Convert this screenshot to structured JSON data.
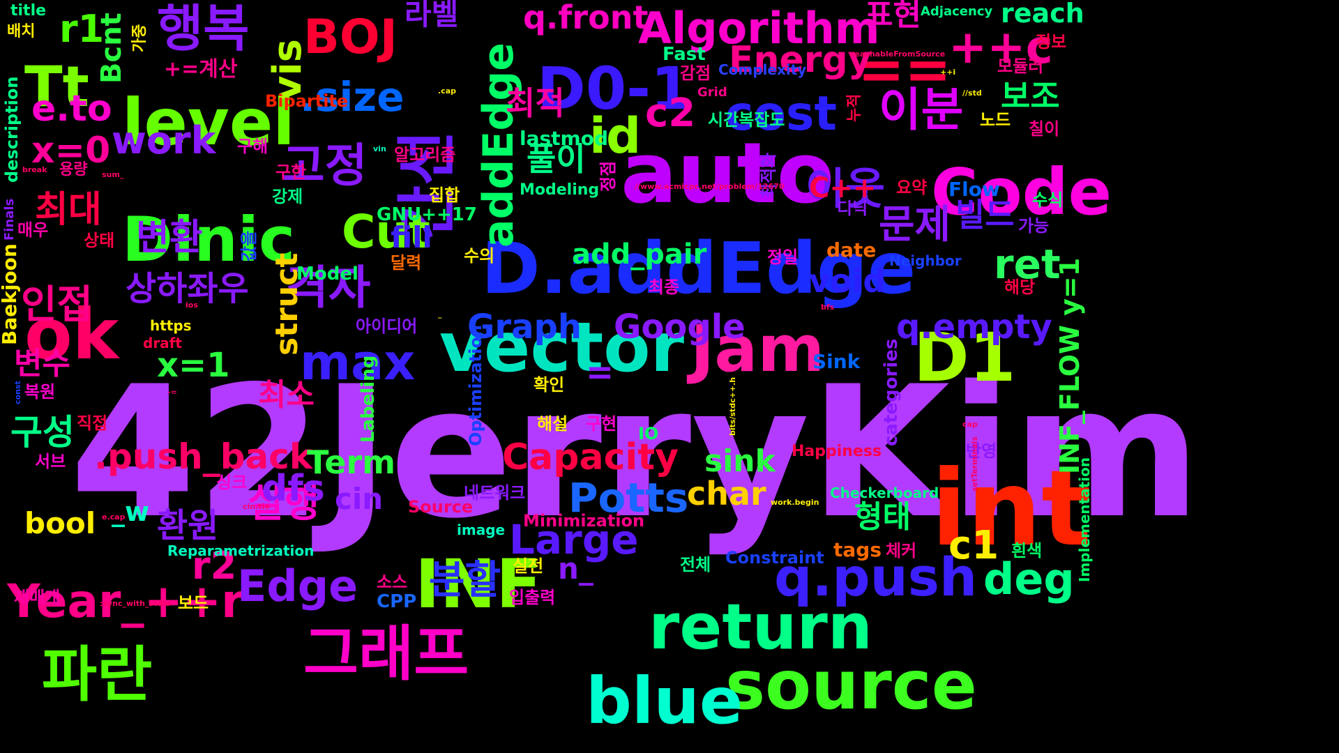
{
  "words": [
    {
      "text": "42JerryKim",
      "color": "#b23bff"
    },
    {
      "text": "int",
      "color": "#ff2200"
    },
    {
      "text": "auto",
      "color": "#c000ff"
    },
    {
      "text": "D.addEdge",
      "color": "#1a2cff"
    },
    {
      "text": "vector",
      "color": "#00e5c0"
    },
    {
      "text": "source",
      "color": "#3cff20"
    },
    {
      "text": "blue",
      "color": "#00ffd0"
    },
    {
      "text": "return",
      "color": "#00ff88"
    },
    {
      "text": "INF",
      "color": "#7dff00"
    },
    {
      "text": "Jam",
      "color": "#ff1aa0"
    },
    {
      "text": "D1",
      "color": "#a6ff00"
    },
    {
      "text": "Code",
      "color": "#ff00e0"
    },
    {
      "text": "Dinic",
      "color": "#28ff20"
    },
    {
      "text": "level",
      "color": "#66ff00"
    },
    {
      "text": "ok",
      "color": "#ff0066"
    },
    {
      "text": "그래프",
      "color": "#ff00c8"
    },
    {
      "text": "파란",
      "color": "#50ff00"
    },
    {
      "text": "간선",
      "color": "#6a1aff"
    },
    {
      "text": "D0-1",
      "color": "#3b1aff"
    },
    {
      "text": "q.push",
      "color": "#3d20ff"
    },
    {
      "text": "행복",
      "color": "#8a1aff"
    },
    {
      "text": "Tt",
      "color": "#7bff00"
    },
    {
      "text": "BOJ",
      "color": "#ff0033"
    },
    {
      "text": "==",
      "color": "#ff0040"
    },
    {
      "text": "++c",
      "color": "#ff0099"
    },
    {
      "text": "Algorithm",
      "color": "#ff00cc"
    },
    {
      "text": "Year_++r",
      "color": "#ff0088"
    },
    {
      "text": "max",
      "color": "#3a20ff"
    },
    {
      "text": "cost",
      "color": "#2a20ff"
    },
    {
      "text": "id",
      "color": "#8aff00"
    },
    {
      "text": "이분",
      "color": "#e000ff"
    },
    {
      "text": "이웃",
      "color": "#6a1aff"
    },
    {
      "text": "격자",
      "color": "#8a1aff"
    },
    {
      "text": "고정",
      "color": "#8a1aff"
    },
    {
      "text": "Cut",
      "color": "#6dff00"
    },
    {
      "text": "addEdge",
      "color": "#00ff66"
    },
    {
      "text": ".size",
      "color": "#0066ff"
    },
    {
      "text": "Energy",
      "color": "#ff0088"
    },
    {
      "text": "q.front",
      "color": "#ff00c0"
    },
    {
      "text": "Edge",
      "color": "#8a1aff"
    },
    {
      "text": "Large",
      "color": "#5a1aff"
    },
    {
      "text": "Potts",
      "color": "#1a66ff"
    },
    {
      "text": "Capacity",
      "color": "#ff0044"
    },
    {
      "text": ".push_back",
      "color": "#ff0066"
    },
    {
      "text": "Graph",
      "color": "#1a40ff"
    },
    {
      "text": "Google",
      "color": "#8a1aff"
    },
    {
      "text": "q.empty",
      "color": "#5a1aff"
    },
    {
      "text": "ret",
      "color": "#2aff60"
    },
    {
      "text": "deg",
      "color": "#00ff88"
    },
    {
      "text": "c1",
      "color": "#ffee00"
    },
    {
      "text": "c2",
      "color": "#ff00aa"
    },
    {
      "text": "r1",
      "color": "#4aff00"
    },
    {
      "text": "r2",
      "color": "#ff0099"
    },
    {
      "text": "x=0",
      "color": "#ff0099"
    },
    {
      "text": "x=1",
      "color": "#2aff40"
    },
    {
      "text": "work",
      "color": "#8a1aff"
    },
    {
      "text": "e.to",
      "color": "#ff00cc"
    },
    {
      "text": "vis",
      "color": "#b0ff00"
    },
    {
      "text": "Bcnt",
      "color": "#2aff40"
    },
    {
      "text": "최대",
      "color": "#ff0044"
    },
    {
      "text": "변환",
      "color": "#8a1aff"
    },
    {
      "text": "상하좌우",
      "color": "#8a1aff"
    },
    {
      "text": "인접",
      "color": "#ff0088"
    },
    {
      "text": "변수",
      "color": "#ff00aa"
    },
    {
      "text": "구성",
      "color": "#00ff88"
    },
    {
      "text": "최적",
      "color": "#ff00a0"
    },
    {
      "text": "풀이",
      "color": "#00ff88"
    },
    {
      "text": "문제",
      "color": "#8a1aff"
    },
    {
      "text": "빌드",
      "color": "#5a1aff"
    },
    {
      "text": "보조",
      "color": "#00ff66"
    },
    {
      "text": "표현",
      "color": "#ff00c0"
    },
    {
      "text": "라벨",
      "color": "#8a1aff"
    },
    {
      "text": "실행",
      "color": "#ff00cc"
    },
    {
      "text": "환원",
      "color": "#8a1aff"
    },
    {
      "text": "분할",
      "color": "#2a30ff"
    },
    {
      "text": "최소",
      "color": "#ff0088"
    },
    {
      "text": "형태",
      "color": "#00ff66"
    },
    {
      "text": "sink",
      "color": "#2aff40"
    },
    {
      "text": "struct",
      "color": "#ffd000"
    },
    {
      "text": "dfs",
      "color": "#8a1aff"
    },
    {
      "text": "cin",
      "color": "#8a1aff"
    },
    {
      "text": "Term",
      "color": "#2aff40"
    },
    {
      "text": "char",
      "color": "#ffd000"
    },
    {
      "text": "void",
      "color": "#2a20ff"
    },
    {
      "text": "bool",
      "color": "#ffee00"
    },
    {
      "text": "_w",
      "color": "#00ffc0"
    },
    {
      "text": "n_",
      "color": "#8a1aff"
    },
    {
      "text": "=",
      "color": "#8a1aff"
    },
    {
      "text": "add_pair",
      "color": "#00ff66"
    },
    {
      "text": "fill",
      "color": "#3a20ff"
    },
    {
      "text": "C++",
      "color": "#ff0044"
    },
    {
      "text": "+=계산",
      "color": "#ff0088"
    },
    {
      "text": "INF_FLOW y=1",
      "color": "#2aff40"
    },
    {
      "text": "reach",
      "color": "#00ff88"
    },
    {
      "text": "Fast",
      "color": "#00ff88"
    },
    {
      "text": "Complexity",
      "color": "#2a40ff"
    },
    {
      "text": "Bipartite",
      "color": "#ff2200"
    },
    {
      "text": "lastmod",
      "color": "#00ff88"
    },
    {
      "text": "Modeling",
      "color": "#00ff88"
    },
    {
      "text": "GNU++17",
      "color": "#00ff66"
    },
    {
      "text": "Model",
      "color": "#00ff66"
    },
    {
      "text": "Flow",
      "color": "#0066ff"
    },
    {
      "text": "Neighbor",
      "color": "#1a40ff"
    },
    {
      "text": "date",
      "color": "#ff6a00"
    },
    {
      "text": "Sink",
      "color": "#0066ff"
    },
    {
      "text": "categories",
      "color": "#8a1aff"
    },
    {
      "text": "Labeling",
      "color": "#2aff40"
    },
    {
      "text": "Optimization",
      "color": "#1a40ff"
    },
    {
      "text": "IO",
      "color": "#00ff66"
    },
    {
      "text": "Happiness",
      "color": "#ff0044"
    },
    {
      "text": "Checkerboard",
      "color": "#00ff88"
    },
    {
      "text": "Minimization",
      "color": "#ff0088"
    },
    {
      "text": "Source",
      "color": "#ff0066"
    },
    {
      "text": "Constraint",
      "color": "#1a40ff"
    },
    {
      "text": "tags",
      "color": "#ff6a00"
    },
    {
      "text": "Reparametrization",
      "color": "#00ffc0"
    },
    {
      "text": "CPP",
      "color": "#1a66ff"
    },
    {
      "text": "image",
      "color": "#00ffc0"
    },
    {
      "text": "https",
      "color": "#ffee00"
    },
    {
      "text": "draft",
      "color": "#ff0044"
    },
    {
      "text": "description",
      "color": "#00ff88"
    },
    {
      "text": "Baekjoon",
      "color": "#ffee00"
    },
    {
      "text": "Finals",
      "color": "#8a1aff"
    },
    {
      "text": "Implementation",
      "color": "#00ff66"
    },
    {
      "text": "Adjacency",
      "color": "#00ff88"
    },
    {
      "text": "Grid",
      "color": "#ff0088"
    },
    {
      "text": "title",
      "color": "#00ff88"
    },
    {
      "text": "배치",
      "color": "#ffee00"
    },
    {
      "text": "용량",
      "color": "#ff0088"
    },
    {
      "text": "매우",
      "color": "#ff00aa"
    },
    {
      "text": "상태",
      "color": "#ff0044"
    },
    {
      "text": "복원",
      "color": "#ff00cc"
    },
    {
      "text": "직접",
      "color": "#ff0044"
    },
    {
      "text": "서브",
      "color": "#ff00cc"
    },
    {
      "text": "싱크",
      "color": "#ff00cc"
    },
    {
      "text": "재매개",
      "color": "#ff00aa"
    },
    {
      "text": "보드",
      "color": "#ffee00"
    },
    {
      "text": "소스",
      "color": "#ff0088"
    },
    {
      "text": "실전",
      "color": "#ffee00"
    },
    {
      "text": "입출력",
      "color": "#ff00cc"
    },
    {
      "text": "해설",
      "color": "#ffee00"
    },
    {
      "text": "구현",
      "color": "#ff00cc"
    },
    {
      "text": "확인",
      "color": "#ffee00"
    },
    {
      "text": "아이디어",
      "color": "#8a1aff"
    },
    {
      "text": "네트워크",
      "color": "#8a1aff"
    },
    {
      "text": "수의",
      "color": "#ffee00"
    },
    {
      "text": "달력",
      "color": "#ff6a00"
    },
    {
      "text": "정일",
      "color": "#ff00cc"
    },
    {
      "text": "최종",
      "color": "#ff00cc"
    },
    {
      "text": "해당",
      "color": "#ff0044"
    },
    {
      "text": "반영",
      "color": "#8a1aff"
    },
    {
      "text": "체커",
      "color": "#ff0088"
    },
    {
      "text": "흰색",
      "color": "#00ff66"
    },
    {
      "text": "전체",
      "color": "#00ff88"
    },
    {
      "text": "가능",
      "color": "#8a1aff"
    },
    {
      "text": "수식",
      "color": "#00ff66"
    },
    {
      "text": "요약",
      "color": "#ff0044"
    },
    {
      "text": "디닉",
      "color": "#8a1aff"
    },
    {
      "text": "칠이",
      "color": "#ff0088"
    },
    {
      "text": "노드",
      "color": "#ffee00"
    },
    {
      "text": "모듈러",
      "color": "#ff0088"
    },
    {
      "text": "정보",
      "color": "#ff0044"
    },
    {
      "text": "누적",
      "color": "#ff0044"
    },
    {
      "text": "감점",
      "color": "#ff0088"
    },
    {
      "text": "시간복잡도",
      "color": "#00ff88"
    },
    {
      "text": "알고리즘",
      "color": "#ff0088"
    },
    {
      "text": "집합",
      "color": "#ffee00"
    },
    {
      "text": "강제",
      "color": "#00ff88"
    },
    {
      "text": "구한",
      "color": "#ff0088"
    },
    {
      "text": "구해",
      "color": "#ff00cc"
    },
    {
      "text": "정점",
      "color": "#ff00cc"
    },
    {
      "text": "최적화",
      "color": "#8a1aff"
    },
    {
      "text": "값을",
      "color": "#1a40ff"
    },
    {
      "text": "가중",
      "color": "#ffee00"
    },
    {
      "text": "reachableFromSource",
      "color": "#ff0066"
    },
    {
      "text": "//www.acmicpc.net/problem/12670",
      "color": "#ff0066"
    },
    {
      "text": "++i",
      "color": "#ffee00"
    },
    {
      "text": "//std",
      "color": "#ffee00"
    },
    {
      "text": ".cap",
      "color": "#ffee00"
    },
    {
      "text": "vin",
      "color": "#00ffc0"
    },
    {
      "text": "break",
      "color": "#ff0066"
    },
    {
      "text": "sum_",
      "color": "#ff0066"
    },
    {
      "text": "ios",
      "color": "#ff0066"
    },
    {
      "text": "bfs",
      "color": "#ff0066"
    },
    {
      "text": "cap",
      "color": "#ff0066"
    },
    {
      "text": "const",
      "color": "#1a40ff"
    },
    {
      "text": "-=",
      "color": "#ff0066"
    },
    {
      "text": "bits/stdc++.h",
      "color": "#ffee00"
    },
    {
      "text": "setTerminals",
      "color": "#ff0066"
    },
    {
      "text": "work.begin",
      "color": "#ffee00"
    },
    {
      "text": "cin.tie",
      "color": "#ff0066"
    },
    {
      "text": "e.cap",
      "color": "#ff0066"
    },
    {
      "text": ":sync_with_stdio",
      "color": "#ff0066"
    },
    {
      "text": "_",
      "color": "#ffee00"
    }
  ]
}
